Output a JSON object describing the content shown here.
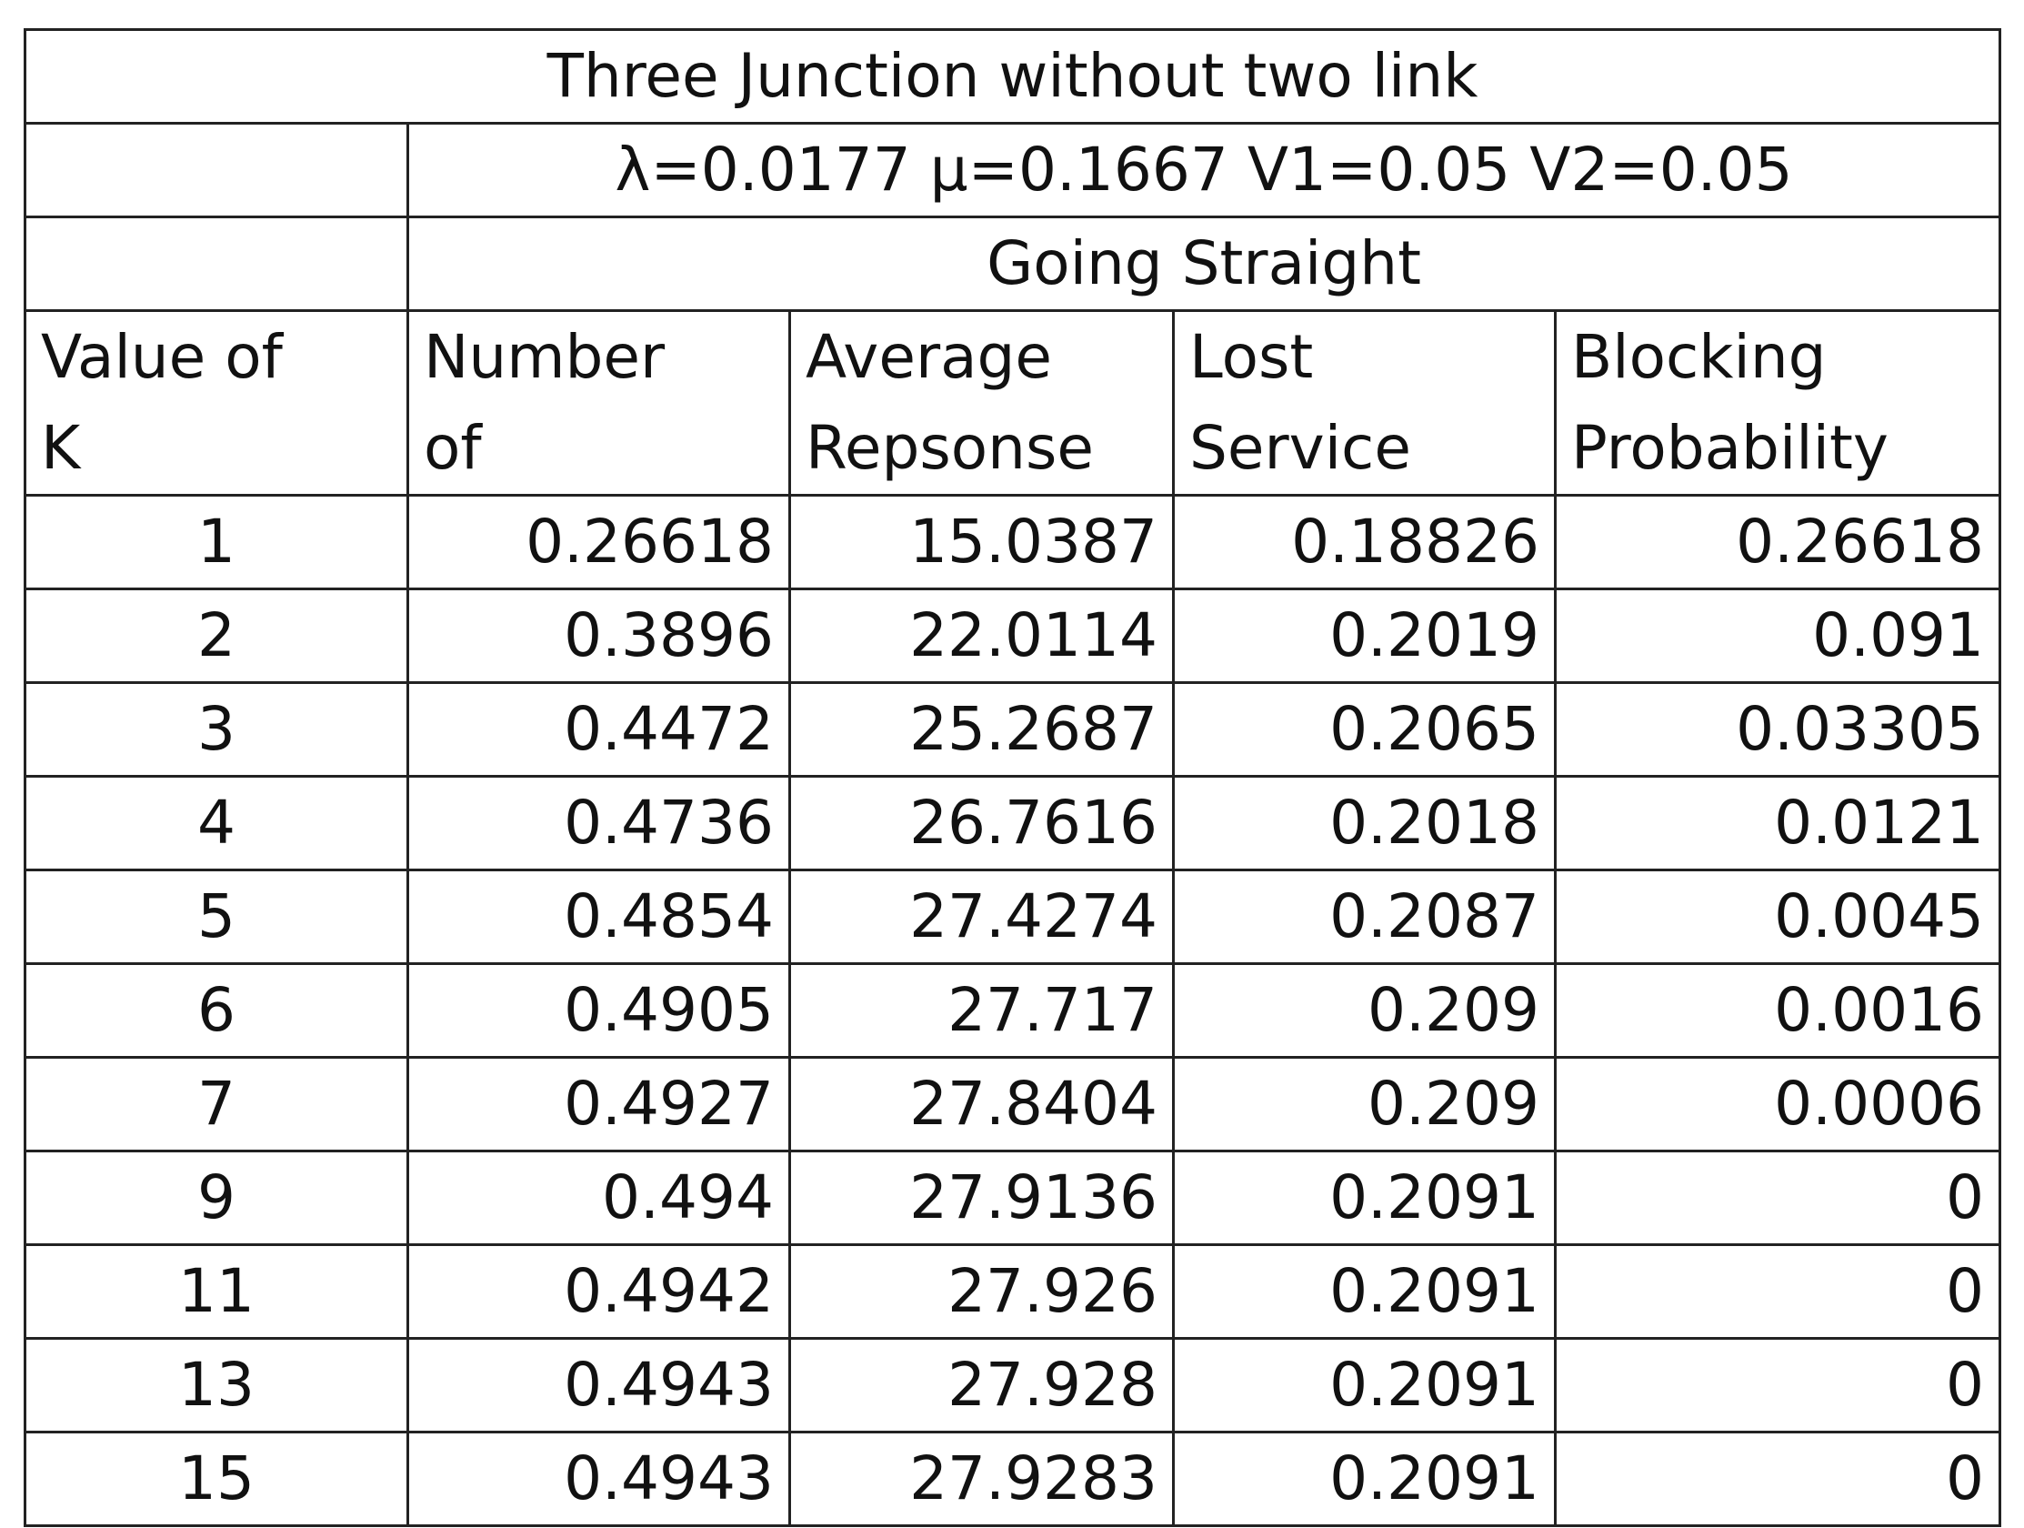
{
  "table": {
    "title": "Three Junction without two link",
    "parameters": "λ=0.0177 μ=0.1667 V1=0.05 V2=0.05",
    "group": "Going Straight",
    "header": [
      [
        "Value of",
        "K"
      ],
      [
        "Number",
        "of"
      ],
      [
        "Average",
        "Repsonse"
      ],
      [
        "Lost",
        "Service"
      ],
      [
        "Blocking",
        "Probability"
      ]
    ],
    "rows": [
      [
        1,
        0.26618,
        15.0387,
        0.18826,
        0.26618
      ],
      [
        2,
        0.3896,
        22.0114,
        0.2019,
        0.091
      ],
      [
        3,
        0.4472,
        25.2687,
        0.2065,
        0.03305
      ],
      [
        4,
        0.4736,
        26.7616,
        0.2018,
        0.0121
      ],
      [
        5,
        0.4854,
        27.4274,
        0.2087,
        0.0045
      ],
      [
        6,
        0.4905,
        27.717,
        0.209,
        0.0016
      ],
      [
        7,
        0.4927,
        27.8404,
        0.209,
        0.0006
      ],
      [
        9,
        0.494,
        27.9136,
        0.2091,
        0
      ],
      [
        11,
        0.4942,
        27.926,
        0.2091,
        0
      ],
      [
        13,
        0.4943,
        27.928,
        0.2091,
        0
      ],
      [
        15,
        0.4943,
        27.9283,
        0.2091,
        0
      ]
    ]
  }
}
